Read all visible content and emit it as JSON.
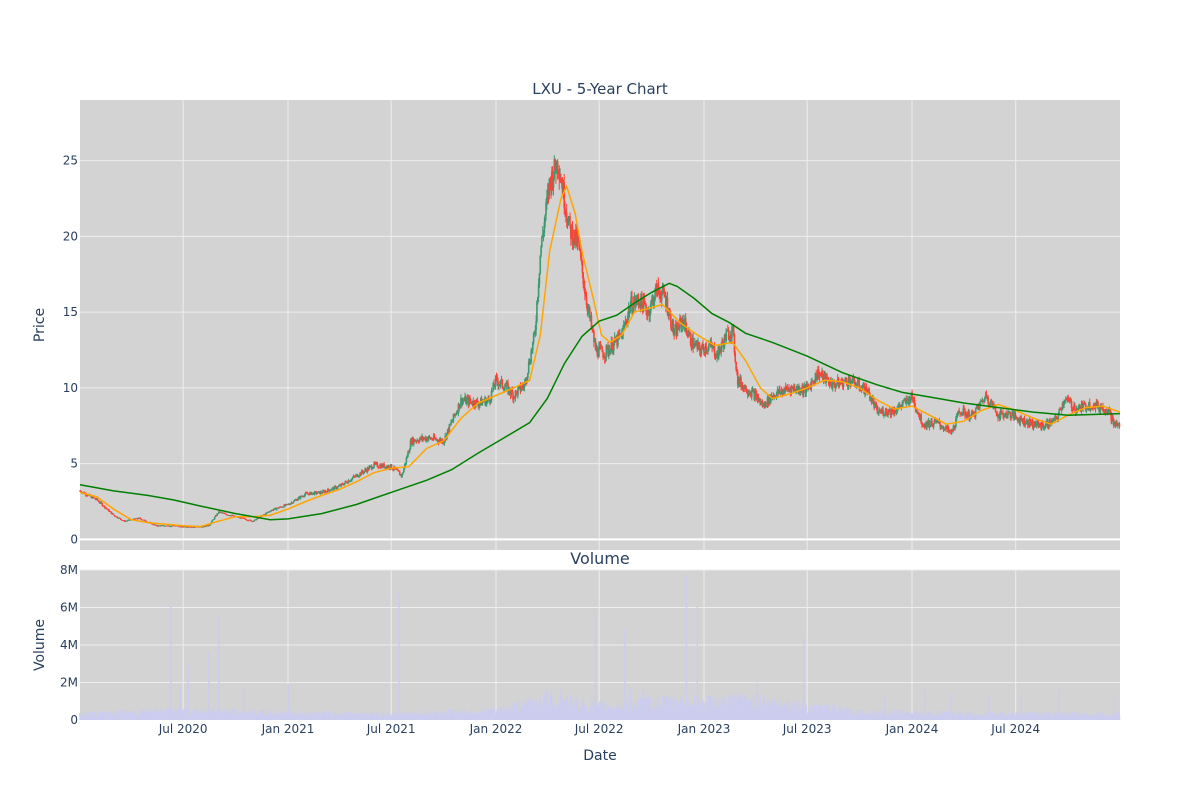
{
  "chart_data": [
    {
      "type": "candlestick",
      "title": "LXU - 5-Year Chart",
      "ylabel": "Price",
      "ylim": [
        -0.7,
        29.0
      ],
      "yticks": [
        "0",
        "5",
        "10",
        "15",
        "20",
        "25"
      ],
      "xlim": [
        "2020-01-02",
        "2024-12-31"
      ],
      "xticks": [
        "Jul 2020",
        "Jan 2021",
        "Jul 2021",
        "Jan 2022",
        "Jul 2022",
        "Jan 2023",
        "Jul 2023",
        "Jan 2024",
        "Jul 2024"
      ],
      "background": "#d3d3d3",
      "grid": true,
      "colors": {
        "up": "#3d9970",
        "down": "#ff4136",
        "ma_short": "#ffa500",
        "ma_long": "#008000"
      },
      "price_path": [
        [
          "2020-01-02",
          3.2
        ],
        [
          "2020-02-01",
          2.6
        ],
        [
          "2020-03-01",
          1.6
        ],
        [
          "2020-03-20",
          1.2
        ],
        [
          "2020-04-15",
          1.4
        ],
        [
          "2020-05-15",
          0.9
        ],
        [
          "2020-06-15",
          0.9
        ],
        [
          "2020-07-15",
          0.8
        ],
        [
          "2020-08-15",
          0.9
        ],
        [
          "2020-09-01",
          1.8
        ],
        [
          "2020-10-01",
          1.5
        ],
        [
          "2020-11-01",
          1.2
        ],
        [
          "2020-12-01",
          1.9
        ],
        [
          "2021-01-01",
          2.3
        ],
        [
          "2021-02-01",
          3.0
        ],
        [
          "2021-03-01",
          3.1
        ],
        [
          "2021-04-01",
          3.5
        ],
        [
          "2021-05-01",
          4.2
        ],
        [
          "2021-06-01",
          4.9
        ],
        [
          "2021-07-01",
          4.8
        ],
        [
          "2021-07-20",
          4.2
        ],
        [
          "2021-08-05",
          6.5
        ],
        [
          "2021-09-01",
          6.7
        ],
        [
          "2021-10-01",
          6.5
        ],
        [
          "2021-11-01",
          9.2
        ],
        [
          "2021-12-01",
          9.0
        ],
        [
          "2021-12-20",
          9.2
        ],
        [
          "2022-01-01",
          10.5
        ],
        [
          "2022-01-20",
          10.0
        ],
        [
          "2022-02-01",
          9.5
        ],
        [
          "2022-02-20",
          10.2
        ],
        [
          "2022-03-10",
          13.5
        ],
        [
          "2022-03-20",
          19.0
        ],
        [
          "2022-04-05",
          23.5
        ],
        [
          "2022-04-20",
          25.0
        ],
        [
          "2022-05-01",
          22.5
        ],
        [
          "2022-05-10",
          20.5
        ],
        [
          "2022-05-25",
          19.5
        ],
        [
          "2022-06-10",
          15.5
        ],
        [
          "2022-06-25",
          12.5
        ],
        [
          "2022-07-10",
          12.3
        ],
        [
          "2022-07-25",
          12.8
        ],
        [
          "2022-08-10",
          13.5
        ],
        [
          "2022-08-25",
          15.5
        ],
        [
          "2022-09-10",
          15.8
        ],
        [
          "2022-09-25",
          15.0
        ],
        [
          "2022-10-10",
          16.5
        ],
        [
          "2022-10-25",
          16.0
        ],
        [
          "2022-11-10",
          13.5
        ],
        [
          "2022-11-25",
          14.5
        ],
        [
          "2022-12-10",
          13.0
        ],
        [
          "2022-12-25",
          12.5
        ],
        [
          "2023-01-10",
          12.8
        ],
        [
          "2023-01-25",
          12.2
        ],
        [
          "2023-02-10",
          13.5
        ],
        [
          "2023-02-20",
          13.8
        ],
        [
          "2023-03-01",
          10.5
        ],
        [
          "2023-03-15",
          10.0
        ],
        [
          "2023-04-01",
          9.5
        ],
        [
          "2023-04-15",
          8.8
        ],
        [
          "2023-05-01",
          9.5
        ],
        [
          "2023-06-01",
          10.0
        ],
        [
          "2023-07-01",
          9.9
        ],
        [
          "2023-07-20",
          11.0
        ],
        [
          "2023-08-15",
          10.2
        ],
        [
          "2023-09-15",
          10.5
        ],
        [
          "2023-10-15",
          9.8
        ],
        [
          "2023-11-01",
          8.4
        ],
        [
          "2023-12-01",
          8.5
        ],
        [
          "2024-01-01",
          9.4
        ],
        [
          "2024-01-20",
          7.6
        ],
        [
          "2024-02-15",
          7.7
        ],
        [
          "2024-03-10",
          7.0
        ],
        [
          "2024-03-25",
          8.5
        ],
        [
          "2024-04-15",
          8.1
        ],
        [
          "2024-05-10",
          9.5
        ],
        [
          "2024-06-01",
          8.2
        ],
        [
          "2024-06-20",
          8.3
        ],
        [
          "2024-07-10",
          7.9
        ],
        [
          "2024-08-01",
          7.6
        ],
        [
          "2024-08-20",
          7.5
        ],
        [
          "2024-09-10",
          7.9
        ],
        [
          "2024-09-25",
          9.3
        ],
        [
          "2024-10-15",
          8.6
        ],
        [
          "2024-11-10",
          8.9
        ],
        [
          "2024-12-10",
          8.6
        ],
        [
          "2024-12-20",
          7.6
        ],
        [
          "2024-12-31",
          7.5
        ]
      ],
      "ma_short": [
        [
          "2020-01-02",
          3.1
        ],
        [
          "2020-02-01",
          2.8
        ],
        [
          "2020-03-01",
          2.0
        ],
        [
          "2020-04-01",
          1.3
        ],
        [
          "2020-05-01",
          1.1
        ],
        [
          "2020-06-01",
          1.0
        ],
        [
          "2020-07-01",
          0.9
        ],
        [
          "2020-08-01",
          0.85
        ],
        [
          "2020-09-01",
          1.2
        ],
        [
          "2020-10-01",
          1.5
        ],
        [
          "2020-11-01",
          1.5
        ],
        [
          "2020-12-01",
          1.6
        ],
        [
          "2021-01-01",
          2.0
        ],
        [
          "2021-02-01",
          2.5
        ],
        [
          "2021-03-01",
          2.9
        ],
        [
          "2021-04-01",
          3.3
        ],
        [
          "2021-05-01",
          3.8
        ],
        [
          "2021-06-01",
          4.4
        ],
        [
          "2021-07-01",
          4.7
        ],
        [
          "2021-08-01",
          4.8
        ],
        [
          "2021-09-01",
          6.0
        ],
        [
          "2021-10-01",
          6.5
        ],
        [
          "2021-11-01",
          8.0
        ],
        [
          "2021-12-01",
          9.0
        ],
        [
          "2022-01-01",
          9.5
        ],
        [
          "2022-02-01",
          10.0
        ],
        [
          "2022-03-01",
          10.5
        ],
        [
          "2022-03-20",
          13.5
        ],
        [
          "2022-04-05",
          19.0
        ],
        [
          "2022-04-25",
          22.5
        ],
        [
          "2022-05-05",
          23.3
        ],
        [
          "2022-05-20",
          21.5
        ],
        [
          "2022-06-01",
          19.0
        ],
        [
          "2022-06-20",
          16.0
        ],
        [
          "2022-07-05",
          13.5
        ],
        [
          "2022-07-20",
          13.0
        ],
        [
          "2022-08-10",
          13.5
        ],
        [
          "2022-09-01",
          15.0
        ],
        [
          "2022-10-01",
          15.3
        ],
        [
          "2022-10-20",
          15.5
        ],
        [
          "2022-11-20",
          14.3
        ],
        [
          "2022-12-20",
          13.5
        ],
        [
          "2023-01-20",
          12.8
        ],
        [
          "2023-02-20",
          13.0
        ],
        [
          "2023-03-15",
          11.8
        ],
        [
          "2023-04-10",
          10.0
        ],
        [
          "2023-05-01",
          9.3
        ],
        [
          "2023-06-01",
          9.6
        ],
        [
          "2023-07-01",
          10.0
        ],
        [
          "2023-08-01",
          10.5
        ],
        [
          "2023-09-01",
          10.4
        ],
        [
          "2023-10-01",
          10.0
        ],
        [
          "2023-11-01",
          9.2
        ],
        [
          "2023-12-01",
          8.6
        ],
        [
          "2024-01-01",
          8.8
        ],
        [
          "2024-02-01",
          8.2
        ],
        [
          "2024-03-01",
          7.6
        ],
        [
          "2024-04-01",
          7.8
        ],
        [
          "2024-05-01",
          8.5
        ],
        [
          "2024-06-01",
          8.9
        ],
        [
          "2024-07-01",
          8.5
        ],
        [
          "2024-08-01",
          8.0
        ],
        [
          "2024-09-01",
          7.6
        ],
        [
          "2024-10-01",
          8.2
        ],
        [
          "2024-11-01",
          8.7
        ],
        [
          "2024-12-01",
          8.8
        ],
        [
          "2024-12-31",
          8.4
        ]
      ],
      "ma_long": [
        [
          "2020-01-02",
          3.6
        ],
        [
          "2020-03-01",
          3.2
        ],
        [
          "2020-05-01",
          2.9
        ],
        [
          "2020-06-15",
          2.6
        ],
        [
          "2020-08-01",
          2.2
        ],
        [
          "2020-10-01",
          1.7
        ],
        [
          "2020-12-01",
          1.3
        ],
        [
          "2021-01-01",
          1.35
        ],
        [
          "2021-03-01",
          1.7
        ],
        [
          "2021-05-01",
          2.3
        ],
        [
          "2021-07-01",
          3.1
        ],
        [
          "2021-09-01",
          3.9
        ],
        [
          "2021-10-15",
          4.6
        ],
        [
          "2021-12-01",
          5.7
        ],
        [
          "2022-01-15",
          6.7
        ],
        [
          "2022-03-01",
          7.7
        ],
        [
          "2022-04-01",
          9.3
        ],
        [
          "2022-05-01",
          11.6
        ],
        [
          "2022-06-01",
          13.4
        ],
        [
          "2022-07-01",
          14.4
        ],
        [
          "2022-08-01",
          14.8
        ],
        [
          "2022-09-01",
          15.6
        ],
        [
          "2022-10-01",
          16.3
        ],
        [
          "2022-11-01",
          16.9
        ],
        [
          "2022-11-15",
          16.7
        ],
        [
          "2022-12-15",
          15.9
        ],
        [
          "2023-01-15",
          14.9
        ],
        [
          "2023-02-15",
          14.3
        ],
        [
          "2023-03-15",
          13.6
        ],
        [
          "2023-05-01",
          13.0
        ],
        [
          "2023-07-01",
          12.1
        ],
        [
          "2023-09-01",
          11.0
        ],
        [
          "2023-11-01",
          10.2
        ],
        [
          "2023-12-15",
          9.7
        ],
        [
          "2024-02-01",
          9.4
        ],
        [
          "2024-04-01",
          9.0
        ],
        [
          "2024-06-01",
          8.7
        ],
        [
          "2024-08-01",
          8.4
        ],
        [
          "2024-10-01",
          8.2
        ],
        [
          "2024-12-31",
          8.3
        ]
      ]
    },
    {
      "type": "bar",
      "title": "Volume",
      "xlabel": "Date",
      "ylabel": "Volume",
      "ylim": [
        0,
        8000000
      ],
      "yticks": [
        "0",
        "2M",
        "4M",
        "6M",
        "8M"
      ],
      "bar_color": "#ccccee",
      "volume_baseline": [
        [
          "2020-01-02",
          300000
        ],
        [
          "2020-07-01",
          500000
        ],
        [
          "2021-01-01",
          350000
        ],
        [
          "2021-07-01",
          300000
        ],
        [
          "2022-01-01",
          450000
        ],
        [
          "2022-04-01",
          1100000
        ],
        [
          "2022-07-01",
          700000
        ],
        [
          "2022-10-01",
          900000
        ],
        [
          "2023-01-01",
          900000
        ],
        [
          "2023-04-01",
          1000000
        ],
        [
          "2023-07-01",
          700000
        ],
        [
          "2023-10-01",
          400000
        ],
        [
          "2024-01-01",
          350000
        ],
        [
          "2024-07-01",
          300000
        ],
        [
          "2024-12-31",
          300000
        ]
      ],
      "volume_spikes": [
        [
          "2020-06-10",
          6100000
        ],
        [
          "2020-06-25",
          1800000
        ],
        [
          "2020-07-10",
          3000000
        ],
        [
          "2020-08-15",
          3600000
        ],
        [
          "2020-09-01",
          5600000
        ],
        [
          "2020-10-15",
          1700000
        ],
        [
          "2021-01-01",
          1900000
        ],
        [
          "2021-07-15",
          6800000
        ],
        [
          "2022-03-25",
          1400000
        ],
        [
          "2022-04-25",
          1700000
        ],
        [
          "2022-06-25",
          5600000
        ],
        [
          "2022-08-15",
          4800000
        ],
        [
          "2022-08-25",
          1700000
        ],
        [
          "2022-09-15",
          1600000
        ],
        [
          "2022-12-01",
          7700000
        ],
        [
          "2022-12-20",
          6100000
        ],
        [
          "2023-04-05",
          2000000
        ],
        [
          "2023-06-25",
          4300000
        ],
        [
          "2023-11-15",
          1200000
        ],
        [
          "2024-01-25",
          1600000
        ],
        [
          "2024-03-10",
          1400000
        ],
        [
          "2024-05-15",
          1300000
        ],
        [
          "2024-07-10",
          1200000
        ],
        [
          "2024-09-15",
          1600000
        ],
        [
          "2024-12-20",
          1200000
        ]
      ]
    }
  ]
}
